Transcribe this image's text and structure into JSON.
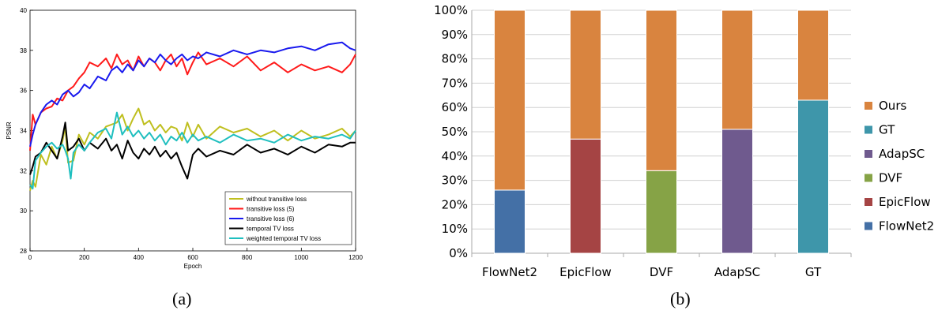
{
  "chart_data": [
    {
      "type": "line",
      "xlabel": "Epoch",
      "ylabel": "PSNR",
      "xlim": [
        0,
        1200
      ],
      "ylim": [
        28,
        40
      ],
      "xticks": [
        0,
        200,
        400,
        600,
        800,
        1000,
        1200
      ],
      "yticks": [
        28,
        30,
        32,
        34,
        36,
        38,
        40
      ],
      "grid": false,
      "legend_position": "bottom-right",
      "series": [
        {
          "name": "without transitive loss",
          "color": "#bfbf1f",
          "x": [
            0,
            10,
            20,
            40,
            60,
            80,
            100,
            120,
            130,
            140,
            160,
            180,
            200,
            220,
            250,
            280,
            300,
            320,
            340,
            360,
            380,
            400,
            420,
            440,
            460,
            480,
            500,
            520,
            540,
            560,
            580,
            600,
            620,
            650,
            700,
            750,
            800,
            850,
            900,
            950,
            1000,
            1050,
            1100,
            1150,
            1180,
            1200
          ],
          "y": [
            31.0,
            31.5,
            31.2,
            32.8,
            32.3,
            33.2,
            32.6,
            33.5,
            34.2,
            32.4,
            32.5,
            33.8,
            33.3,
            33.9,
            33.6,
            34.2,
            34.3,
            34.4,
            34.8,
            34.0,
            34.6,
            35.1,
            34.3,
            34.5,
            34.0,
            34.3,
            33.9,
            34.2,
            34.1,
            33.5,
            34.4,
            33.7,
            34.3,
            33.6,
            34.2,
            33.9,
            34.1,
            33.7,
            34.0,
            33.5,
            34.0,
            33.6,
            33.8,
            34.1,
            33.7,
            34.0
          ]
        },
        {
          "name": "transitive loss (5)",
          "color": "#ff1a1a",
          "x": [
            0,
            10,
            20,
            40,
            60,
            80,
            100,
            120,
            140,
            160,
            180,
            200,
            220,
            250,
            280,
            300,
            320,
            340,
            360,
            380,
            400,
            420,
            440,
            460,
            480,
            500,
            520,
            540,
            560,
            580,
            600,
            620,
            650,
            700,
            750,
            800,
            850,
            900,
            950,
            1000,
            1050,
            1100,
            1150,
            1180,
            1200
          ],
          "y": [
            33.0,
            34.8,
            34.3,
            34.9,
            35.1,
            35.2,
            35.6,
            35.5,
            36.0,
            36.2,
            36.6,
            36.9,
            37.4,
            37.2,
            37.6,
            37.1,
            37.8,
            37.3,
            37.5,
            37.0,
            37.7,
            37.2,
            37.6,
            37.4,
            37.0,
            37.5,
            37.8,
            37.2,
            37.6,
            36.8,
            37.4,
            37.9,
            37.3,
            37.6,
            37.2,
            37.7,
            37.0,
            37.4,
            36.9,
            37.3,
            37.0,
            37.2,
            36.9,
            37.3,
            37.8
          ]
        },
        {
          "name": "transitive loss (6)",
          "color": "#1a1aee",
          "x": [
            0,
            10,
            20,
            40,
            60,
            80,
            100,
            120,
            140,
            160,
            180,
            200,
            220,
            250,
            280,
            300,
            320,
            340,
            360,
            380,
            400,
            420,
            440,
            460,
            480,
            500,
            520,
            540,
            560,
            580,
            600,
            620,
            650,
            700,
            750,
            800,
            850,
            900,
            950,
            1000,
            1050,
            1100,
            1150,
            1180,
            1200
          ],
          "y": [
            33.2,
            33.8,
            34.3,
            34.9,
            35.3,
            35.5,
            35.3,
            35.8,
            36.0,
            35.7,
            35.9,
            36.3,
            36.1,
            36.7,
            36.5,
            37.0,
            37.2,
            36.9,
            37.3,
            37.0,
            37.5,
            37.2,
            37.6,
            37.4,
            37.8,
            37.5,
            37.3,
            37.6,
            37.8,
            37.5,
            37.7,
            37.6,
            37.9,
            37.7,
            38.0,
            37.8,
            38.0,
            37.9,
            38.1,
            38.2,
            38.0,
            38.3,
            38.4,
            38.1,
            38.0
          ]
        },
        {
          "name": "temporal TV loss",
          "color": "#000000",
          "x": [
            0,
            10,
            20,
            40,
            60,
            80,
            100,
            120,
            130,
            140,
            160,
            180,
            200,
            220,
            250,
            280,
            300,
            320,
            340,
            360,
            380,
            400,
            420,
            440,
            460,
            480,
            500,
            520,
            540,
            560,
            580,
            600,
            620,
            650,
            700,
            750,
            800,
            850,
            900,
            950,
            1000,
            1050,
            1100,
            1150,
            1180,
            1200
          ],
          "y": [
            31.8,
            32.2,
            32.7,
            32.9,
            33.4,
            33.0,
            32.6,
            33.7,
            34.4,
            33.0,
            33.2,
            33.6,
            33.0,
            33.4,
            33.1,
            33.6,
            33.0,
            33.3,
            32.6,
            33.5,
            32.9,
            32.6,
            33.1,
            32.8,
            33.2,
            32.7,
            33.0,
            32.6,
            32.9,
            32.2,
            31.6,
            32.8,
            33.1,
            32.7,
            33.0,
            32.8,
            33.3,
            32.9,
            33.1,
            32.8,
            33.2,
            32.9,
            33.3,
            33.2,
            33.4,
            33.4
          ]
        },
        {
          "name": "weighted temporal TV loss",
          "color": "#1fbfbf",
          "x": [
            0,
            10,
            20,
            40,
            60,
            80,
            100,
            120,
            130,
            140,
            150,
            160,
            180,
            200,
            220,
            250,
            280,
            300,
            320,
            340,
            360,
            380,
            400,
            420,
            440,
            460,
            480,
            500,
            520,
            540,
            560,
            580,
            600,
            620,
            650,
            700,
            750,
            800,
            850,
            900,
            950,
            1000,
            1050,
            1100,
            1150,
            1180,
            1200
          ],
          "y": [
            31.3,
            31.1,
            32.5,
            32.9,
            33.2,
            33.4,
            33.1,
            33.3,
            33.0,
            32.6,
            31.6,
            32.9,
            33.3,
            33.0,
            33.4,
            33.9,
            34.1,
            33.6,
            34.9,
            33.8,
            34.2,
            33.7,
            34.0,
            33.6,
            33.9,
            33.5,
            33.8,
            33.3,
            33.7,
            33.5,
            33.9,
            33.4,
            33.8,
            33.5,
            33.7,
            33.4,
            33.8,
            33.5,
            33.6,
            33.4,
            33.8,
            33.5,
            33.7,
            33.6,
            33.8,
            33.6,
            34.0
          ]
        }
      ]
    },
    {
      "type": "bar",
      "stacked": true,
      "categories": [
        "FlowNet2",
        "EpicFlow",
        "DVF",
        "AdapSC",
        "GT"
      ],
      "ylim": [
        0,
        100
      ],
      "yticks": [
        "0%",
        "10%",
        "20%",
        "30%",
        "40%",
        "50%",
        "60%",
        "70%",
        "80%",
        "90%",
        "100%"
      ],
      "grid": true,
      "legend_position": "right",
      "series": [
        {
          "name": "FlowNet2",
          "color": "#4470a6",
          "values": [
            26,
            0,
            0,
            0,
            0
          ]
        },
        {
          "name": "EpicFlow",
          "color": "#a54444",
          "values": [
            0,
            47,
            0,
            0,
            0
          ]
        },
        {
          "name": "DVF",
          "color": "#86a346",
          "values": [
            0,
            0,
            34,
            0,
            0
          ]
        },
        {
          "name": "AdapSC",
          "color": "#6f5a8e",
          "values": [
            0,
            0,
            0,
            51,
            0
          ]
        },
        {
          "name": "GT",
          "color": "#3e96aa",
          "values": [
            0,
            0,
            0,
            0,
            63
          ]
        },
        {
          "name": "Ours",
          "color": "#d9843f",
          "values": [
            74,
            53,
            66,
            49,
            37
          ]
        }
      ],
      "legend_order": [
        "Ours",
        "GT",
        "AdapSC",
        "DVF",
        "EpicFlow",
        "FlowNet2"
      ]
    }
  ],
  "captions": {
    "a": "(a)",
    "b": "(b)"
  }
}
